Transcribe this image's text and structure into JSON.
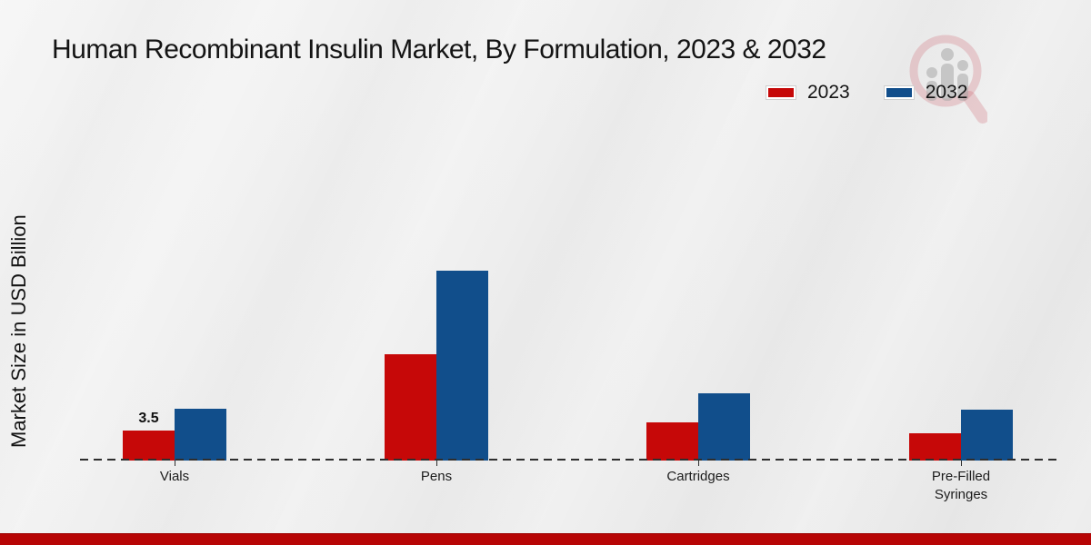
{
  "title": "Human Recombinant Insulin Market, By Formulation, 2023 & 2032",
  "ylabel": "Market Size in USD Billion",
  "legend": {
    "items": [
      {
        "label": "2023",
        "color": "#c60808"
      },
      {
        "label": "2032",
        "color": "#114e8b"
      }
    ]
  },
  "watermark": {
    "name": "market-research-logo",
    "glass_color": "#c94b55",
    "bars_color": "#a8a8a8"
  },
  "accent_strip_color": "#b70505",
  "chart_data": {
    "type": "bar",
    "title": "Human Recombinant Insulin Market, By Formulation, 2023 & 2032",
    "xlabel": "",
    "ylabel": "Market Size in USD Billion",
    "categories": [
      "Vials",
      "Pens",
      "Cartridges",
      "Pre-Filled Syringes"
    ],
    "series": [
      {
        "name": "2023",
        "color": "#c60808",
        "values": [
          3.5,
          12.4,
          4.5,
          3.2
        ]
      },
      {
        "name": "2032",
        "color": "#114e8b",
        "values": [
          6.0,
          22.2,
          7.9,
          5.9
        ]
      }
    ],
    "data_labels": [
      [
        "3.5",
        "",
        "",
        ""
      ],
      [
        "",
        "",
        "",
        ""
      ]
    ],
    "ylim": [
      0,
      24
    ],
    "grid": false,
    "y_axis_ticks_visible": false,
    "baseline_style": "dashed",
    "legend_position": "top-right"
  }
}
